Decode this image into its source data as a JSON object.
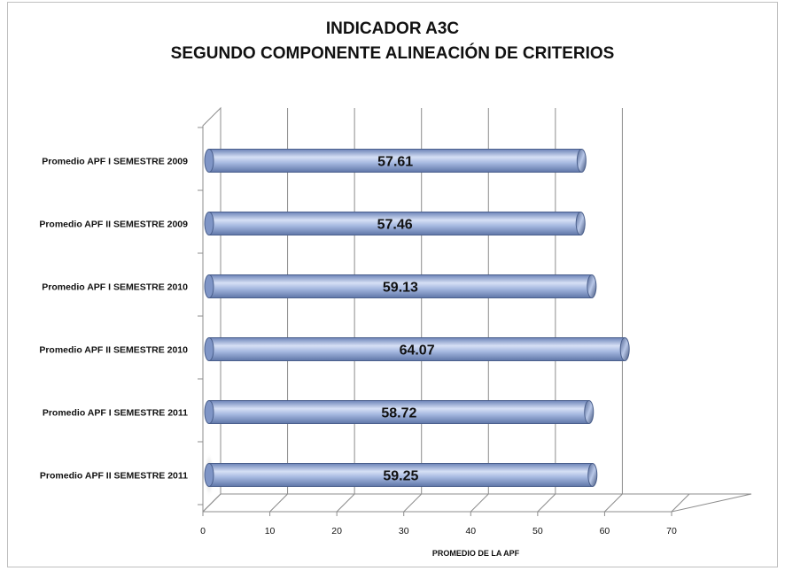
{
  "chart_data": {
    "type": "bar",
    "orientation": "horizontal",
    "title_line1": "INDICADOR A3C",
    "title_line2": "SEGUNDO COMPONENTE ALINEACIÓN DE CRITERIOS",
    "categories": [
      "Promedio APF I SEMESTRE 2009",
      "Promedio APF II SEMESTRE 2009",
      "Promedio APF I SEMESTRE 2010",
      "Promedio APF II SEMESTRE 2010",
      "Promedio APF I SEMESTRE 2011",
      "Promedio APF II SEMESTRE 2011"
    ],
    "values": [
      57.61,
      57.46,
      59.13,
      64.07,
      58.72,
      59.25
    ],
    "data_labels": [
      "57.61",
      "57.46",
      "59.13",
      "64.07",
      "58.72",
      "59.25"
    ],
    "xlabel": "PROMEDIO DE LA APF",
    "xlim": [
      0,
      70
    ],
    "x_ticks": [
      "0",
      "10",
      "20",
      "30",
      "40",
      "50",
      "60",
      "70"
    ],
    "grid": true,
    "legend": "none",
    "bar_color": "#8ea6d6",
    "bar_edge_color": "#4a5f8c"
  }
}
